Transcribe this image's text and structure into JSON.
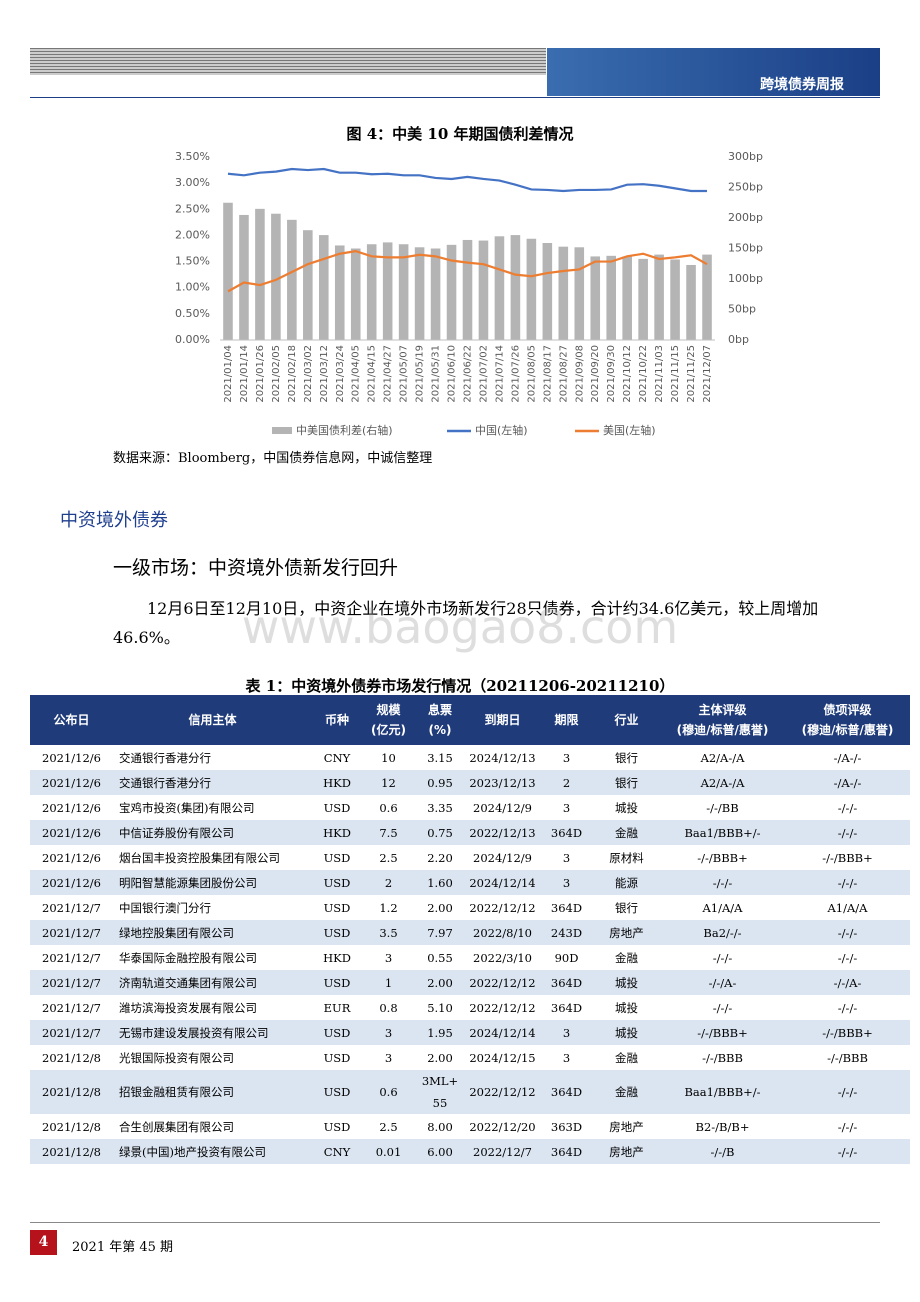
{
  "header": {
    "title": "跨境债券周报"
  },
  "figure": {
    "caption": "图 4：中美 10 年期国债利差情况",
    "chart_data": {
      "type": "combo",
      "categories": [
        "2021/01/04",
        "2021/01/14",
        "2021/01/26",
        "2021/02/05",
        "2021/02/18",
        "2021/03/02",
        "2021/03/12",
        "2021/03/24",
        "2021/04/05",
        "2021/04/15",
        "2021/04/27",
        "2021/05/07",
        "2021/05/19",
        "2021/05/31",
        "2021/06/10",
        "2021/06/22",
        "2021/07/02",
        "2021/07/14",
        "2021/07/26",
        "2021/08/05",
        "2021/08/17",
        "2021/08/27",
        "2021/09/08",
        "2021/09/20",
        "2021/09/30",
        "2021/10/12",
        "2021/10/22",
        "2021/11/03",
        "2021/11/15",
        "2021/11/25",
        "2021/12/07"
      ],
      "series": [
        {
          "name": "中美国债利差(右轴)",
          "color": "#b4b4b4",
          "kind": "bar",
          "axis": "y2",
          "values": [
            225,
            205,
            215,
            207,
            197,
            180,
            172,
            155,
            150,
            157,
            160,
            157,
            152,
            150,
            156,
            164,
            163,
            170,
            172,
            166,
            159,
            153,
            152,
            137,
            138,
            137,
            133,
            140,
            132,
            123,
            140
          ]
        },
        {
          "name": "中国(左轴)",
          "color": "#4472c4",
          "kind": "line",
          "values": [
            3.18,
            3.15,
            3.2,
            3.22,
            3.27,
            3.25,
            3.27,
            3.2,
            3.2,
            3.17,
            3.18,
            3.15,
            3.15,
            3.1,
            3.08,
            3.12,
            3.08,
            3.05,
            2.97,
            2.88,
            2.87,
            2.85,
            2.87,
            2.87,
            2.88,
            2.97,
            2.98,
            2.95,
            2.9,
            2.85,
            2.85
          ]
        },
        {
          "name": "美国(左轴)",
          "color": "#ed7d31",
          "kind": "line",
          "values": [
            0.93,
            1.1,
            1.05,
            1.15,
            1.3,
            1.45,
            1.55,
            1.65,
            1.7,
            1.6,
            1.58,
            1.58,
            1.63,
            1.6,
            1.52,
            1.48,
            1.45,
            1.35,
            1.25,
            1.22,
            1.28,
            1.32,
            1.35,
            1.5,
            1.5,
            1.6,
            1.65,
            1.55,
            1.58,
            1.62,
            1.45
          ]
        }
      ],
      "ylim": [
        0,
        3.5
      ],
      "yticks": [
        {
          "value": 0,
          "label": "0.00%"
        },
        {
          "value": 0.5,
          "label": "0.50%"
        },
        {
          "value": 1,
          "label": "1.00%"
        },
        {
          "value": 1.5,
          "label": "1.50%"
        },
        {
          "value": 2,
          "label": "2.00%"
        },
        {
          "value": 2.5,
          "label": "2.50%"
        },
        {
          "value": 3,
          "label": "3.00%"
        },
        {
          "value": 3.5,
          "label": "3.50%"
        }
      ],
      "y2lim": [
        0,
        300
      ],
      "y2ticks": [
        {
          "value": 0,
          "label": "0bp"
        },
        {
          "value": 50,
          "label": "50bp"
        },
        {
          "value": 100,
          "label": "100bp"
        },
        {
          "value": 150,
          "label": "150bp"
        },
        {
          "value": 200,
          "label": "200bp"
        },
        {
          "value": 250,
          "label": "250bp"
        },
        {
          "value": 300,
          "label": "300bp"
        }
      ],
      "legend": "bottom",
      "grid": false
    },
    "source": "数据来源：Bloomberg，中国债券信息网，中诚信整理"
  },
  "section_title": "中资境外债券",
  "subsection_title": "一级市场：中资境外债新发行回升",
  "paragraph": "12月6日至12月10日，中资企业在境外市场新发行28只债券，合计约34.6亿美元，较上周增加46.6%。",
  "watermark": "www.baogao8.com",
  "table": {
    "caption": "表 1：中资境外债券市场发行情况（20211206-20211210）",
    "columns": [
      "公布日",
      "信用主体",
      "币种",
      "规模\n(亿元)",
      "息票\n(%)",
      "到期日",
      "期限",
      "行业",
      "主体评级\n(穆迪/标普/惠誉)",
      "债项评级\n(穆迪/标普/惠誉)"
    ],
    "rows": [
      [
        "2021/12/6",
        "交通银行香港分行",
        "CNY",
        "10",
        "3.15",
        "2024/12/13",
        "3",
        "银行",
        "A2/A-/A",
        "-/A-/-"
      ],
      [
        "2021/12/6",
        "交通银行香港分行",
        "HKD",
        "12",
        "0.95",
        "2023/12/13",
        "2",
        "银行",
        "A2/A-/A",
        "-/A-/-"
      ],
      [
        "2021/12/6",
        "宝鸡市投资(集团)有限公司",
        "USD",
        "0.6",
        "3.35",
        "2024/12/9",
        "3",
        "城投",
        "-/-/BB",
        "-/-/-"
      ],
      [
        "2021/12/6",
        "中信证券股份有限公司",
        "HKD",
        "7.5",
        "0.75",
        "2022/12/13",
        "364D",
        "金融",
        "Baa1/BBB+/-",
        "-/-/-"
      ],
      [
        "2021/12/6",
        "烟台国丰投资控股集团有限公司",
        "USD",
        "2.5",
        "2.20",
        "2024/12/9",
        "3",
        "原材料",
        "-/-/BBB+",
        "-/-/BBB+"
      ],
      [
        "2021/12/6",
        "明阳智慧能源集团股份公司",
        "USD",
        "2",
        "1.60",
        "2024/12/14",
        "3",
        "能源",
        "-/-/-",
        "-/-/-"
      ],
      [
        "2021/12/7",
        "中国银行澳门分行",
        "USD",
        "1.2",
        "2.00",
        "2022/12/12",
        "364D",
        "银行",
        "A1/A/A",
        "A1/A/A"
      ],
      [
        "2021/12/7",
        "绿地控股集团有限公司",
        "USD",
        "3.5",
        "7.97",
        "2022/8/10",
        "243D",
        "房地产",
        "Ba2/-/-",
        "-/-/-"
      ],
      [
        "2021/12/7",
        "华泰国际金融控股有限公司",
        "HKD",
        "3",
        "0.55",
        "2022/3/10",
        "90D",
        "金融",
        "-/-/-",
        "-/-/-"
      ],
      [
        "2021/12/7",
        "济南轨道交通集团有限公司",
        "USD",
        "1",
        "2.00",
        "2022/12/12",
        "364D",
        "城投",
        "-/-/A-",
        "-/-/A-"
      ],
      [
        "2021/12/7",
        "潍坊滨海投资发展有限公司",
        "EUR",
        "0.8",
        "5.10",
        "2022/12/12",
        "364D",
        "城投",
        "-/-/-",
        "-/-/-"
      ],
      [
        "2021/12/7",
        "无锡市建设发展投资有限公司",
        "USD",
        "3",
        "1.95",
        "2024/12/14",
        "3",
        "城投",
        "-/-/BBB+",
        "-/-/BBB+"
      ],
      [
        "2021/12/8",
        "光银国际投资有限公司",
        "USD",
        "3",
        "2.00",
        "2024/12/15",
        "3",
        "金融",
        "-/-/BBB",
        "-/-/BBB"
      ],
      [
        "2021/12/8",
        "招银金融租赁有限公司",
        "USD",
        "0.6",
        "3ML+\n55",
        "2022/12/12",
        "364D",
        "金融",
        "Baa1/BBB+/-",
        "-/-/-"
      ],
      [
        "2021/12/8",
        "合生创展集团有限公司",
        "USD",
        "2.5",
        "8.00",
        "2022/12/20",
        "363D",
        "房地产",
        "B2-/B/B+",
        "-/-/-"
      ],
      [
        "2021/12/8",
        "绿景(中国)地产投资有限公司",
        "CNY",
        "0.01",
        "6.00",
        "2022/12/7",
        "364D",
        "房地产",
        "-/-/B",
        "-/-/-"
      ]
    ]
  },
  "footer": {
    "page": "4",
    "issue": "2021 年第 45 期"
  }
}
